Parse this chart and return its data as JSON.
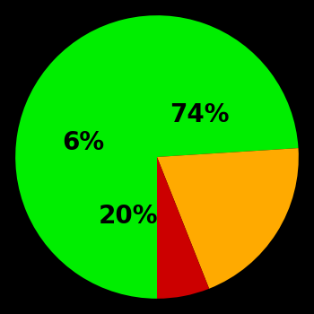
{
  "slices": [
    74,
    20,
    6
  ],
  "labels": [
    "74%",
    "20%",
    "6%"
  ],
  "colors": [
    "#00ee00",
    "#ffaa00",
    "#cc0000"
  ],
  "background_color": "#000000",
  "startangle": 270,
  "figsize": [
    3.5,
    3.5
  ],
  "dpi": 100,
  "text_fontsize": 20,
  "text_fontweight": "bold"
}
